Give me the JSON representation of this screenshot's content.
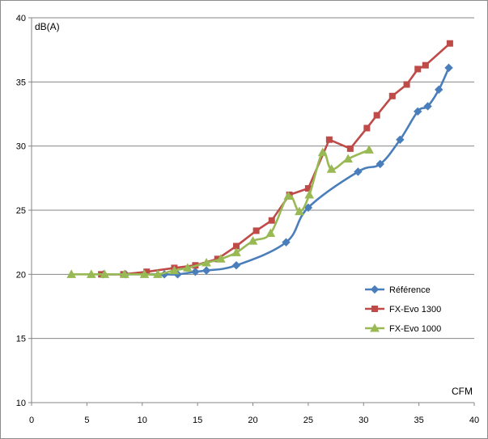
{
  "chart_data": {
    "type": "line",
    "title": "",
    "xlabel": "CFM",
    "ylabel": "dB(A)",
    "xlim": [
      0,
      40
    ],
    "ylim": [
      10,
      40
    ],
    "xticks": [
      0,
      5,
      10,
      15,
      20,
      25,
      30,
      35,
      40
    ],
    "yticks": [
      10,
      15,
      20,
      25,
      30,
      35,
      40
    ],
    "grid": "horizontal",
    "legend_position": "right",
    "series": [
      {
        "name": "Référence",
        "color": "#4a7ebb",
        "marker": "diamond",
        "smooth": true,
        "points": [
          [
            6.5,
            20.0
          ],
          [
            8.5,
            20.0
          ],
          [
            12.0,
            20.0
          ],
          [
            13.2,
            20.0
          ],
          [
            14.8,
            20.2
          ],
          [
            15.8,
            20.3
          ],
          [
            18.5,
            20.7
          ],
          [
            23.0,
            22.5
          ],
          [
            25.0,
            25.2
          ],
          [
            29.5,
            28.0
          ],
          [
            31.5,
            28.6
          ],
          [
            33.3,
            30.5
          ],
          [
            34.9,
            32.7
          ],
          [
            35.8,
            33.1
          ],
          [
            36.8,
            34.4
          ],
          [
            37.7,
            36.1
          ]
        ]
      },
      {
        "name": "FX-Evo 1300",
        "color": "#be4b48",
        "marker": "square",
        "smooth": false,
        "points": [
          [
            6.3,
            20.0
          ],
          [
            8.3,
            20.0
          ],
          [
            10.4,
            20.2
          ],
          [
            12.9,
            20.5
          ],
          [
            14.8,
            20.7
          ],
          [
            16.8,
            21.2
          ],
          [
            18.5,
            22.2
          ],
          [
            20.3,
            23.4
          ],
          [
            21.7,
            24.2
          ],
          [
            23.3,
            26.2
          ],
          [
            25.0,
            26.7
          ],
          [
            26.9,
            30.5
          ],
          [
            28.8,
            29.8
          ],
          [
            30.3,
            31.4
          ],
          [
            31.2,
            32.4
          ],
          [
            32.6,
            33.9
          ],
          [
            33.9,
            34.8
          ],
          [
            34.9,
            36.0
          ],
          [
            35.6,
            36.3
          ],
          [
            37.8,
            38.0
          ]
        ]
      },
      {
        "name": "FX-Evo 1000",
        "color": "#98b954",
        "marker": "triangle",
        "smooth": true,
        "points": [
          [
            3.6,
            20.0
          ],
          [
            5.4,
            20.0
          ],
          [
            6.6,
            20.0
          ],
          [
            8.4,
            20.0
          ],
          [
            10.2,
            20.0
          ],
          [
            11.4,
            20.0
          ],
          [
            12.9,
            20.3
          ],
          [
            14.1,
            20.5
          ],
          [
            15.8,
            20.9
          ],
          [
            17.1,
            21.2
          ],
          [
            18.5,
            21.7
          ],
          [
            20.0,
            22.6
          ],
          [
            21.6,
            23.2
          ],
          [
            23.2,
            26.1
          ],
          [
            24.2,
            24.9
          ],
          [
            25.1,
            26.2
          ],
          [
            26.3,
            29.5
          ],
          [
            27.1,
            28.2
          ],
          [
            28.6,
            29.0
          ],
          [
            30.5,
            29.7
          ]
        ]
      }
    ]
  }
}
